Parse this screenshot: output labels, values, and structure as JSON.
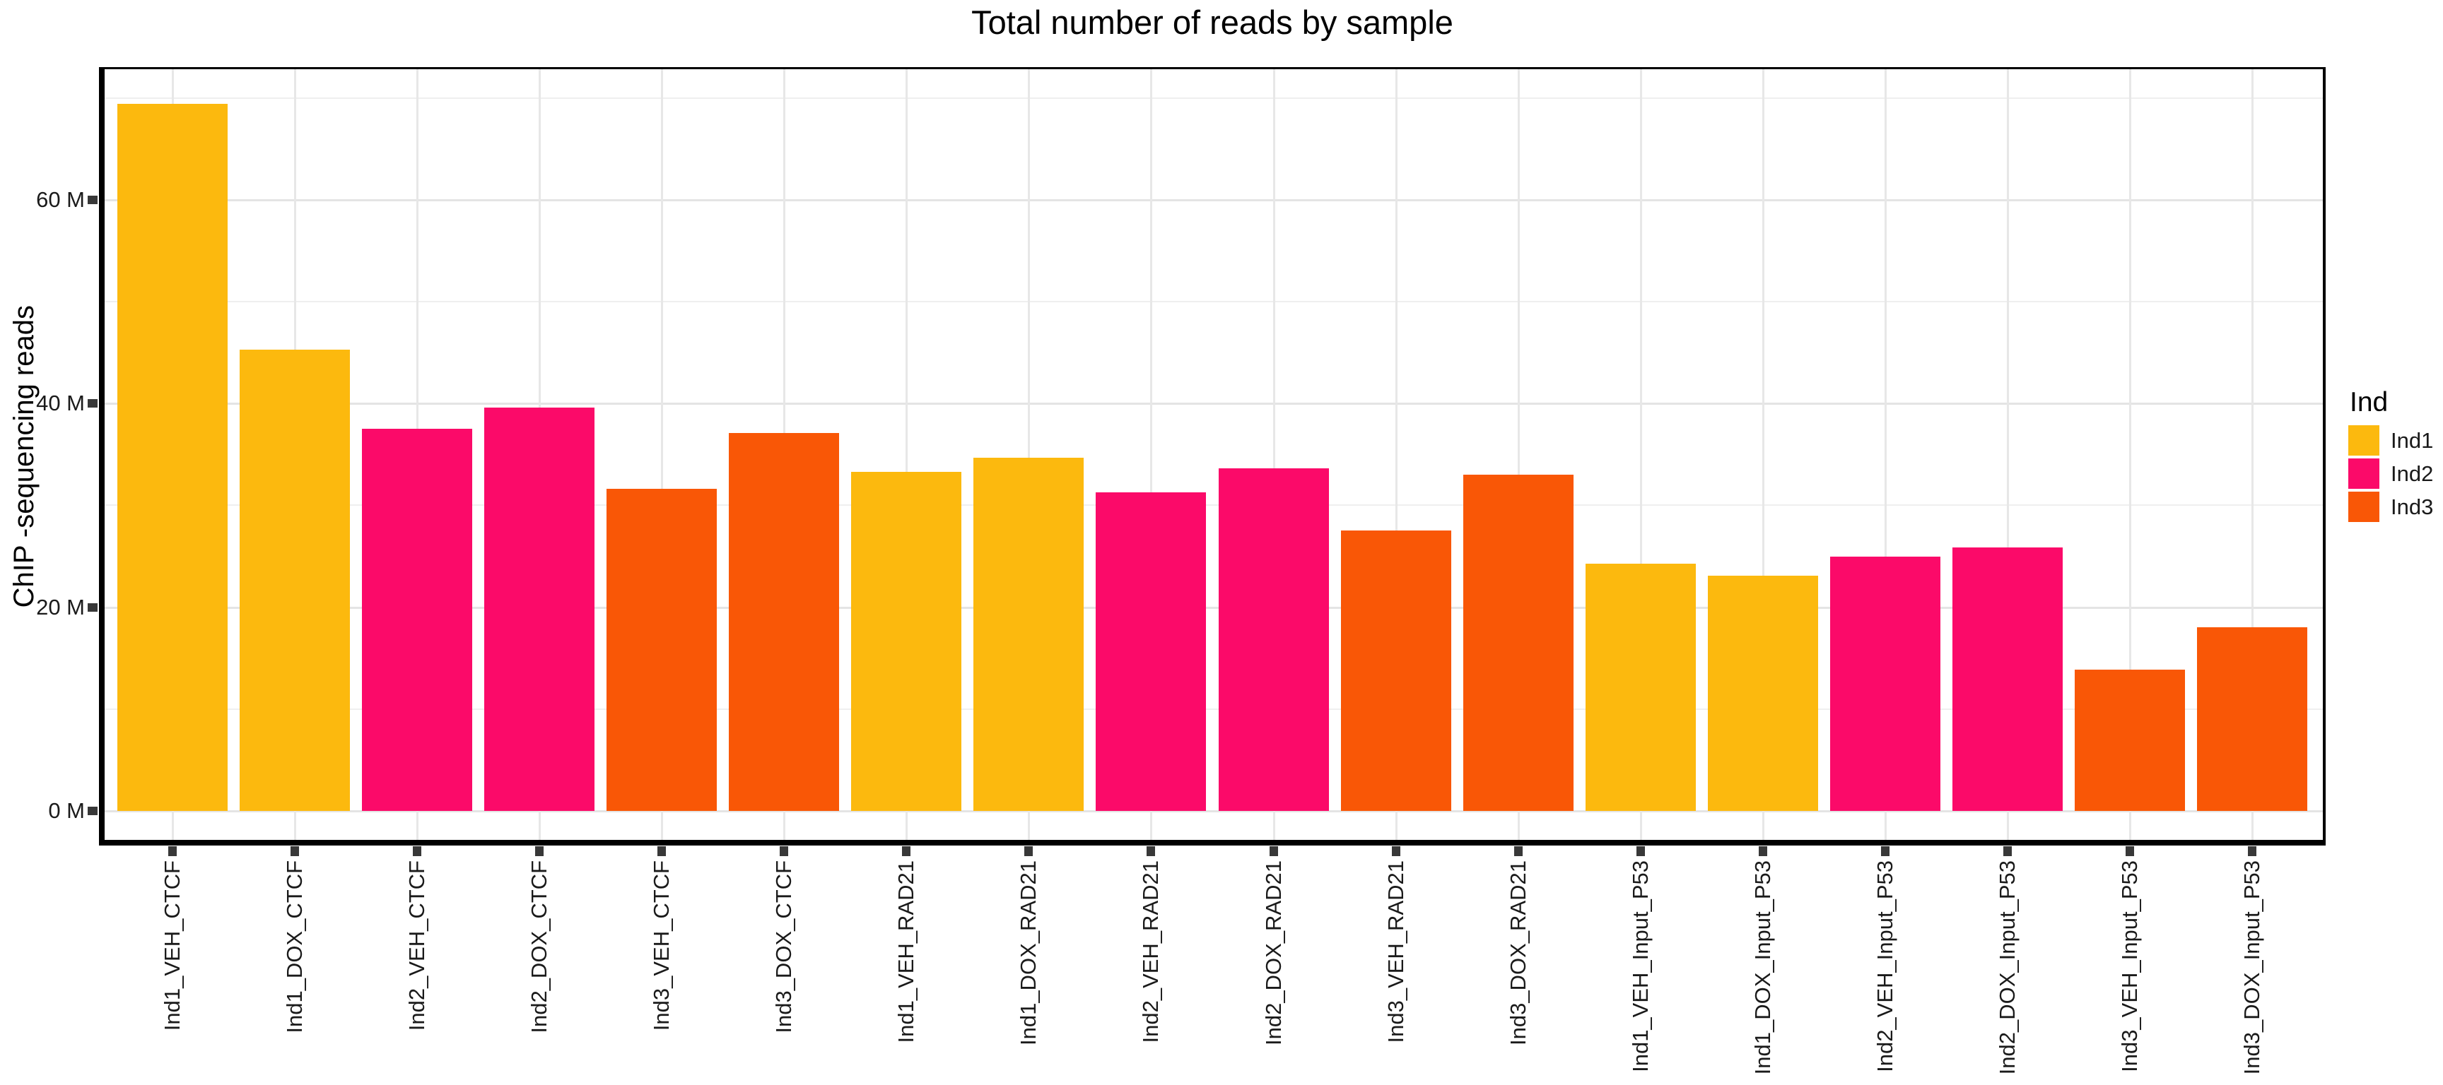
{
  "title": "Total number of reads by sample",
  "y_axis": {
    "label": "ChIP -sequencing reads",
    "tick_labels": [
      "0 M",
      "20 M",
      "40 M",
      "60 M"
    ],
    "tick_values": [
      0,
      20,
      40,
      60
    ],
    "minor_gridline_values": [
      10,
      30,
      50,
      70
    ]
  },
  "legend": {
    "title": "Ind",
    "entries": [
      {
        "label": "Ind1",
        "color": "#FCB90E"
      },
      {
        "label": "Ind2",
        "color": "#FB0A69"
      },
      {
        "label": "Ind3",
        "color": "#F95706"
      }
    ]
  },
  "chart_data": {
    "type": "bar",
    "title": "Total number of reads by sample",
    "xlabel": "",
    "ylabel": "ChIP -sequencing reads",
    "unit": "millions of reads",
    "categories": [
      "Ind1_VEH_CTCF",
      "Ind1_DOX_CTCF",
      "Ind2_VEH_CTCF",
      "Ind2_DOX_CTCF",
      "Ind3_VEH_CTCF",
      "Ind3_DOX_CTCF",
      "Ind1_VEH_RAD21",
      "Ind1_DOX_RAD21",
      "Ind2_VEH_RAD21",
      "Ind2_DOX_RAD21",
      "Ind3_VEH_RAD21",
      "Ind3_DOX_RAD21",
      "Ind1_VEH_Input_P53",
      "Ind1_DOX_Input_P53",
      "Ind2_VEH_Input_P53",
      "Ind2_DOX_Input_P53",
      "Ind3_VEH_Input_P53",
      "Ind3_DOX_Input_P53"
    ],
    "values": [
      69.4,
      45.3,
      37.5,
      39.6,
      31.6,
      37.1,
      33.3,
      34.7,
      31.3,
      33.6,
      27.5,
      33.0,
      24.3,
      23.1,
      25.0,
      25.9,
      13.9,
      18.0
    ],
    "groups": [
      "Ind1",
      "Ind1",
      "Ind2",
      "Ind2",
      "Ind3",
      "Ind3",
      "Ind1",
      "Ind1",
      "Ind2",
      "Ind2",
      "Ind3",
      "Ind3",
      "Ind1",
      "Ind1",
      "Ind2",
      "Ind2",
      "Ind3",
      "Ind3"
    ],
    "group_colors": {
      "Ind1": "#FCB90E",
      "Ind2": "#FB0A69",
      "Ind3": "#F95706"
    },
    "ylim": [
      0,
      73
    ],
    "yticks": [
      0,
      20,
      40,
      60
    ],
    "ytick_labels": [
      "0 M",
      "20 M",
      "40 M",
      "60 M"
    ],
    "minor_gridlines": [
      10,
      30,
      50,
      70
    ],
    "grid": "on",
    "legend_title": "Ind",
    "legend_position": "right",
    "bar_relative_width": 0.9
  }
}
